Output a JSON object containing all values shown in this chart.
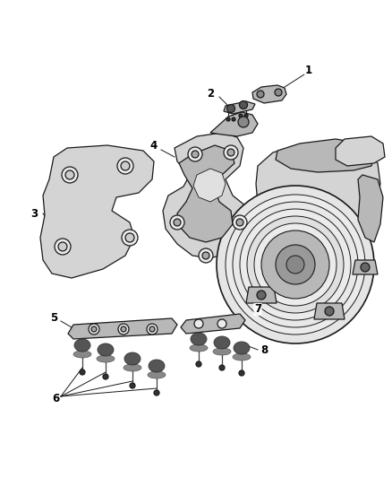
{
  "bg_color": "#ffffff",
  "line_color": "#1a1a1a",
  "fill_light": "#d4d4d4",
  "fill_mid": "#b8b8b8",
  "fill_dark": "#888888",
  "fill_very_light": "#ebebeb",
  "figsize": [
    4.38,
    5.33
  ],
  "dpi": 100,
  "label_fontsize": 8.5,
  "leader_lw": 0.7,
  "part_lw": 0.9
}
